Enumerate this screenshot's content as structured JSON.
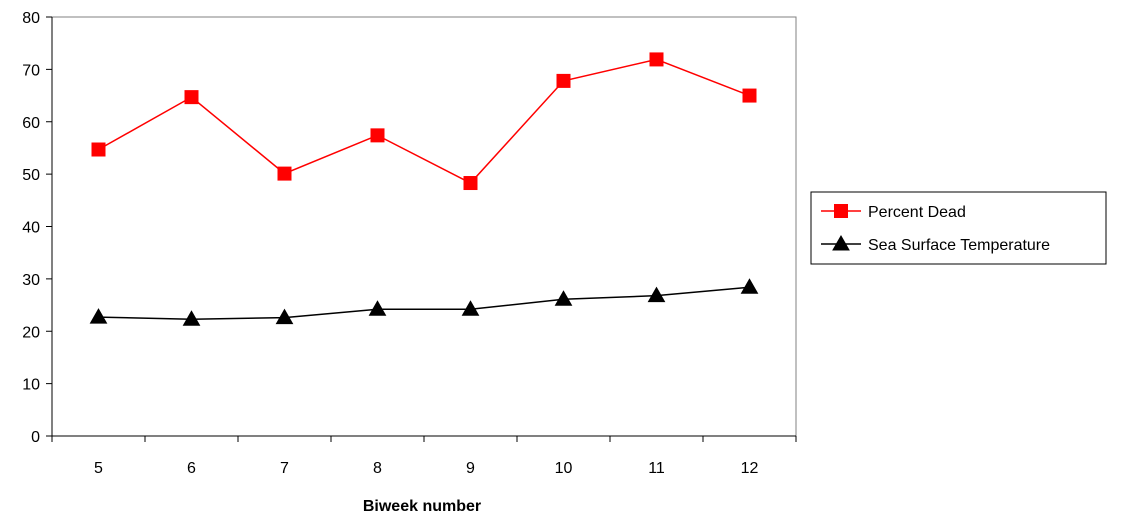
{
  "chart_data": {
    "type": "line",
    "title": "",
    "xlabel": "Biweek number",
    "ylabel": "",
    "categories": [
      "5",
      "6",
      "7",
      "8",
      "9",
      "10",
      "11",
      "12"
    ],
    "ylim": [
      0,
      80
    ],
    "yticks": [
      "0",
      "10",
      "20",
      "30",
      "40",
      "50",
      "60",
      "70",
      "80"
    ],
    "grid": false,
    "legend_position": "right",
    "series": [
      {
        "name": "Percent Dead",
        "color": "#ff0000",
        "marker": "square",
        "values": [
          54.7,
          64.7,
          50.1,
          57.4,
          48.3,
          67.8,
          71.9,
          65.0
        ]
      },
      {
        "name": "Sea Surface Temperature",
        "color": "#000000",
        "marker": "triangle",
        "values": [
          22.7,
          22.3,
          22.6,
          24.2,
          24.2,
          26.1,
          26.8,
          28.4
        ]
      }
    ]
  }
}
